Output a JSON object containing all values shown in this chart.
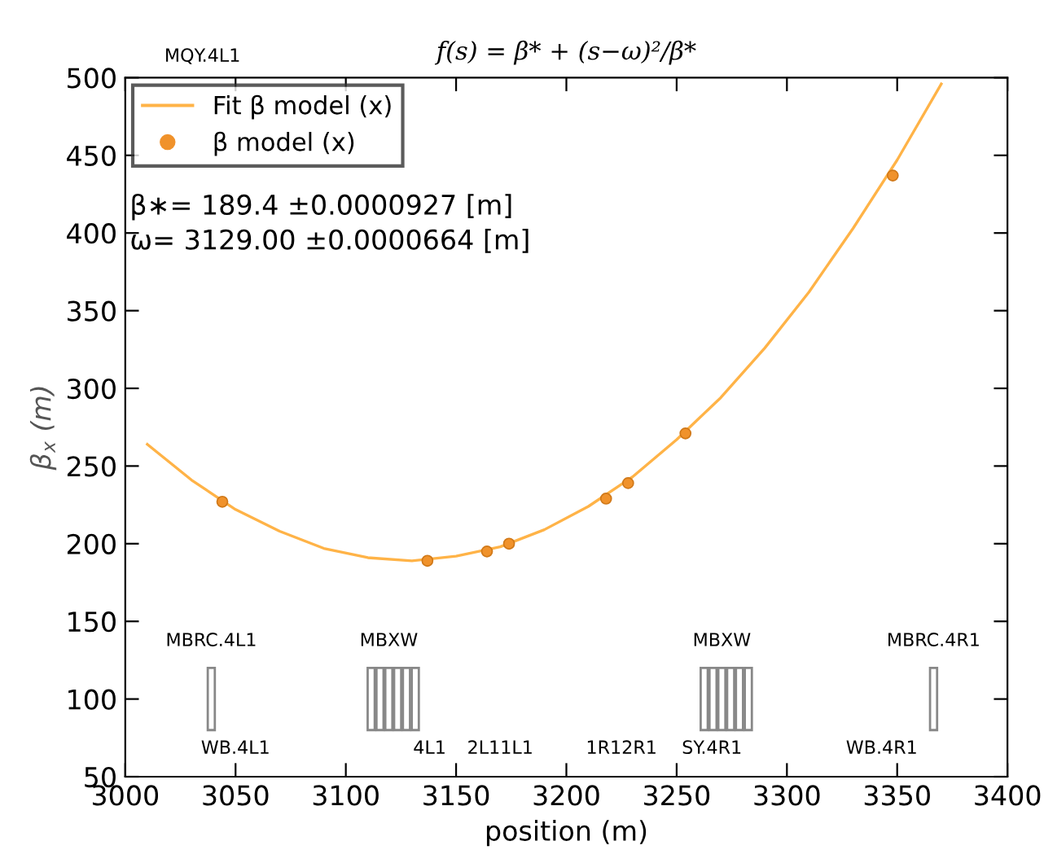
{
  "chart_data": {
    "type": "line",
    "title": "f(s) = β* + (s−ω)²/β*",
    "xlabel": "position (m)",
    "ylabel": "β$_{x}$ (m)",
    "xlim": [
      3000,
      3400
    ],
    "ylim": [
      50,
      500
    ],
    "xticks": [
      3000,
      3050,
      3100,
      3150,
      3200,
      3250,
      3300,
      3350,
      3400
    ],
    "yticks": [
      50,
      100,
      150,
      200,
      250,
      300,
      350,
      400,
      450,
      500
    ],
    "grid": false,
    "legend": "top left",
    "series": [
      {
        "name": "Fit β model (x)",
        "color": "#ffb347",
        "marker": "none",
        "line_style": "solid",
        "x": [
          3010,
          3030,
          3050,
          3070,
          3090,
          3110,
          3130,
          3150,
          3170,
          3190,
          3210,
          3230,
          3250,
          3270,
          3290,
          3310,
          3330,
          3350,
          3370
        ],
        "values": [
          264,
          241,
          222,
          208,
          197,
          191,
          189,
          192,
          198,
          209,
          224,
          243,
          267,
          294,
          326,
          362,
          403,
          447,
          496
        ]
      },
      {
        "name": "β model (x)",
        "type": "scatter",
        "color": "#f0922b",
        "marker": "circle",
        "x": [
          3044,
          3137,
          3164,
          3174,
          3218,
          3228,
          3254,
          3348
        ],
        "values": [
          227,
          189,
          195,
          200,
          229,
          239,
          271,
          437
        ]
      },
      {
        "type": "bar",
        "color": "#888888",
        "x": [
          3039,
          3111.5,
          3115.5,
          3119.5,
          3123.5,
          3127.5,
          3131.5,
          3262.5,
          3266.5,
          3270.5,
          3274.5,
          3278.5,
          3282.5,
          3366.5
        ],
        "base": [
          80,
          80,
          80,
          80,
          80,
          80,
          80,
          80,
          80,
          80,
          80,
          80,
          80,
          80
        ],
        "values": [
          40,
          40,
          40,
          40,
          40,
          40,
          40,
          40,
          40,
          40,
          40,
          40,
          40,
          40
        ],
        "value_labels": [
          "MBRC.4L1",
          null,
          null,
          "MBXW",
          null,
          null,
          null,
          null,
          null,
          "MBXW",
          null,
          null,
          null,
          "MBRC.4R1"
        ]
      }
    ],
    "annotations": [
      "β∗= 189.4 ±0.0000927 [m]",
      "ω= 3129.00 ±0.0000664 [m]",
      "MQY.4L1",
      "WB.4L1",
      "4L1",
      "2L11L1",
      "1R12R1",
      "SY.4R1",
      "WB.4R1"
    ]
  }
}
